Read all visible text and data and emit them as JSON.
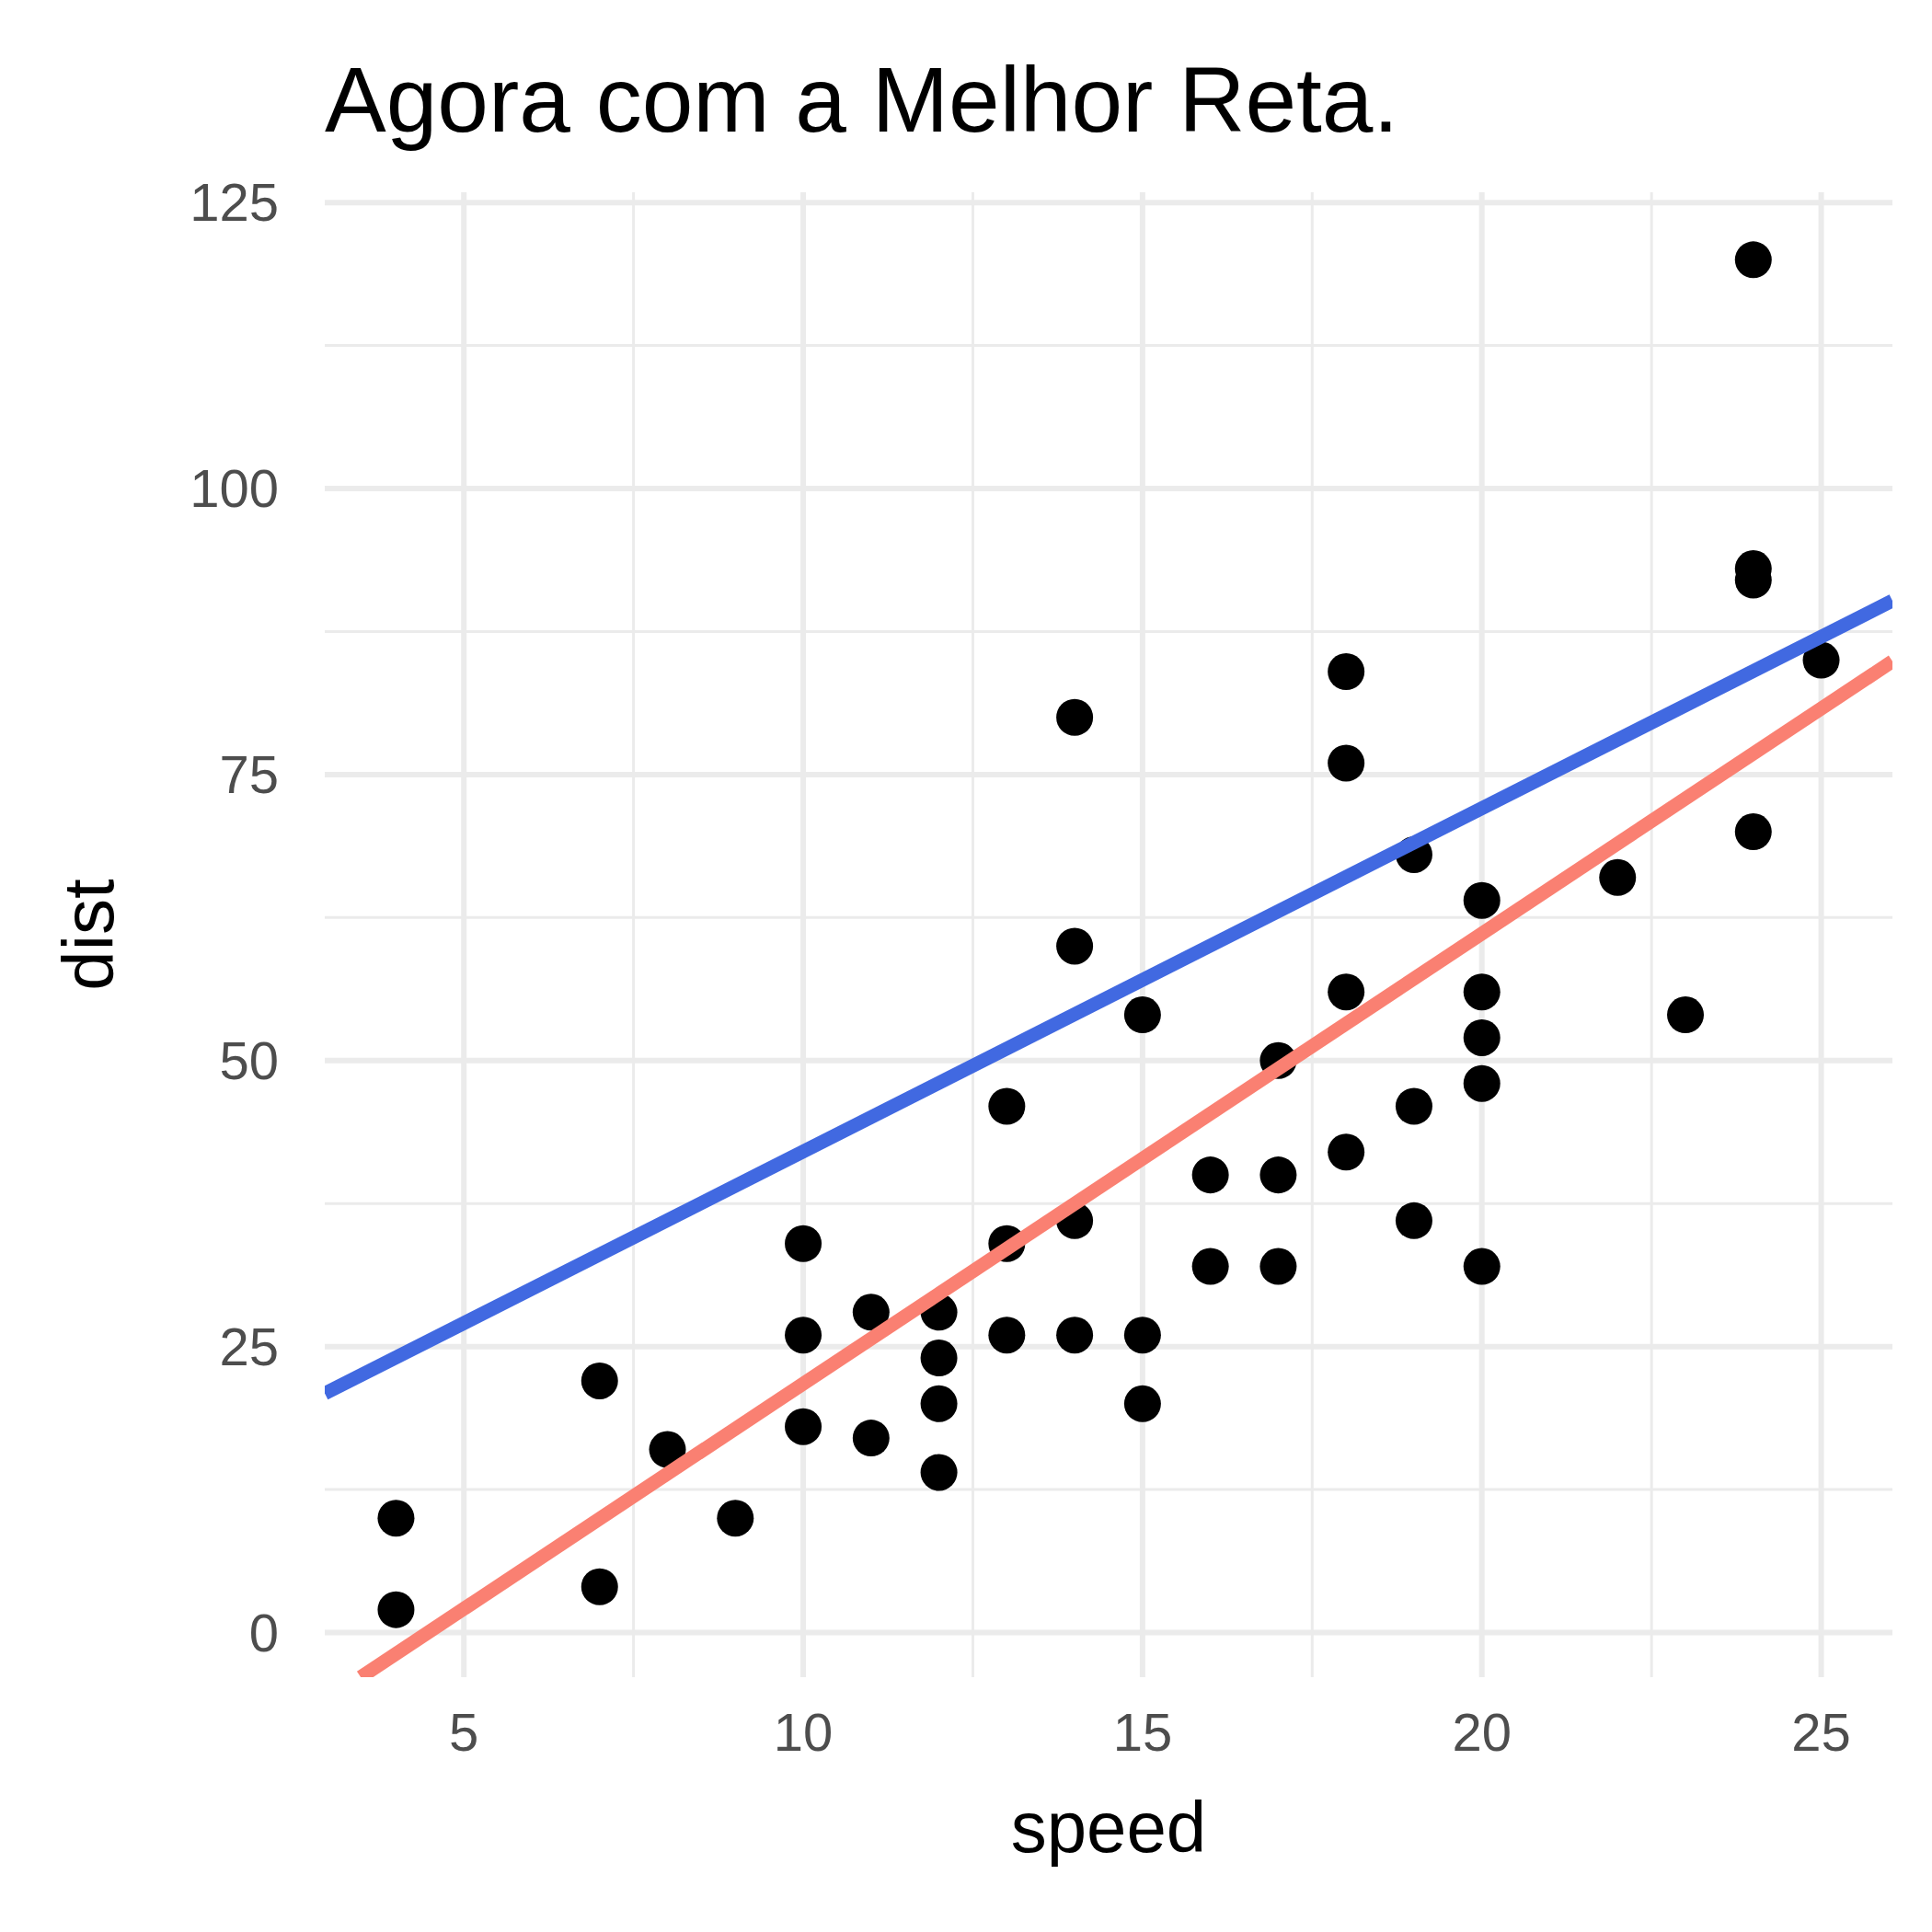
{
  "chart_data": {
    "type": "scatter",
    "title": "Agora com a Melhor Reta.",
    "xlabel": "speed",
    "ylabel": "dist",
    "xlim": [
      2.95,
      26.05
    ],
    "ylim": [
      -3.9,
      125.9
    ],
    "xticks": [
      5,
      10,
      15,
      20,
      25
    ],
    "yticks": [
      0,
      25,
      50,
      75,
      100,
      125
    ],
    "grid": true,
    "series": [
      {
        "type": "scatter",
        "marker": "circle",
        "color": "#000000",
        "x": [
          4,
          4,
          7,
          7,
          8,
          9,
          10,
          10,
          10,
          11,
          11,
          12,
          12,
          12,
          12,
          13,
          13,
          13,
          14,
          14,
          14,
          14,
          15,
          15,
          15,
          16,
          16,
          17,
          17,
          17,
          18,
          18,
          18,
          18,
          19,
          19,
          19,
          20,
          20,
          20,
          20,
          20,
          22,
          23,
          24,
          24,
          24,
          24,
          25
        ],
        "values": [
          2,
          10,
          4,
          22,
          16,
          10,
          18,
          26,
          34,
          17,
          28,
          14,
          20,
          24,
          28,
          26,
          34,
          46,
          26,
          36,
          60,
          80,
          20,
          26,
          54,
          32,
          40,
          32,
          40,
          50,
          42,
          56,
          76,
          84,
          36,
          46,
          68,
          32,
          48,
          52,
          56,
          64,
          66,
          54,
          70,
          92,
          93,
          120,
          85
        ]
      },
      {
        "type": "line",
        "color": "#4169e1",
        "x": [
          2.95,
          26.05
        ],
        "values": [
          20.9,
          90.2
        ]
      },
      {
        "type": "line",
        "color": "#fa8072",
        "x": [
          3.48,
          26.05
        ],
        "values": [
          -3.9,
          84.9
        ]
      }
    ]
  }
}
